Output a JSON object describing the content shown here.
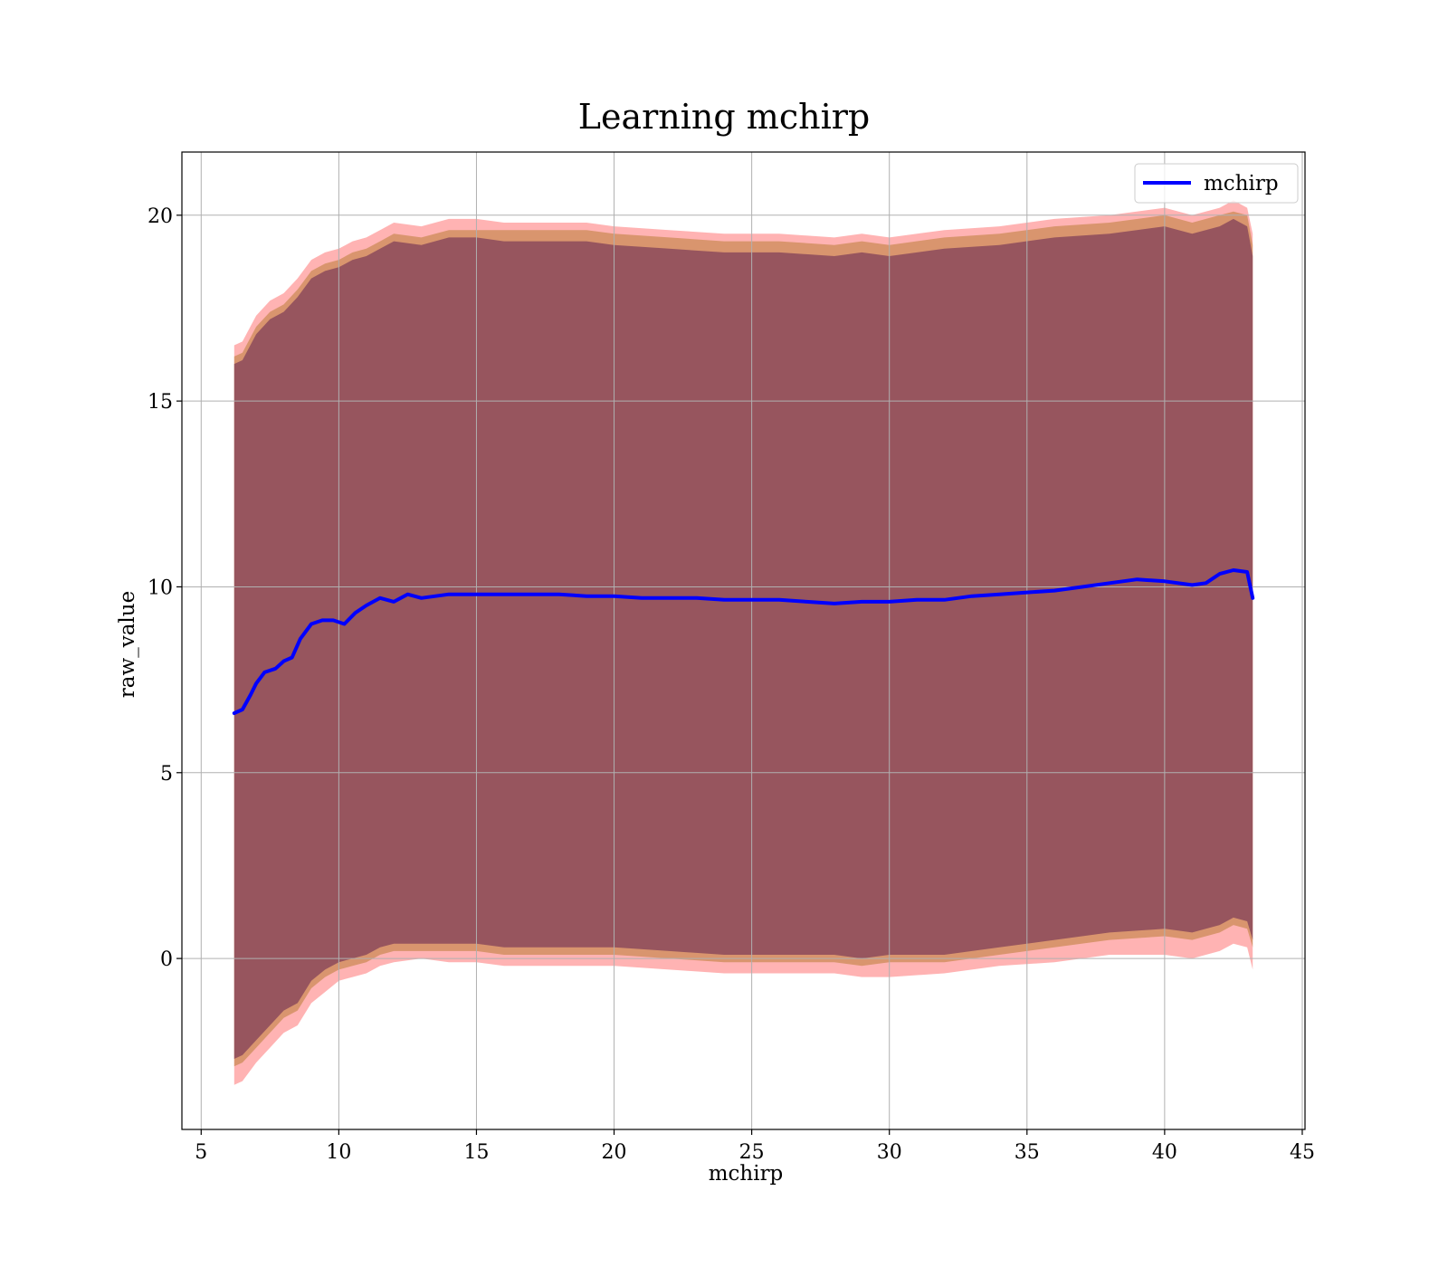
{
  "chart_data": {
    "type": "line",
    "title": "Learning mchirp",
    "xlabel": "mchirp",
    "ylabel": "raw_value",
    "xlim": [
      4.3,
      45.1
    ],
    "ylim": [
      -4.6,
      21.7
    ],
    "xticks": [
      5,
      10,
      15,
      20,
      25,
      30,
      35,
      40,
      45
    ],
    "yticks": [
      0,
      5,
      10,
      15,
      20
    ],
    "xtick_labels": [
      "5",
      "10",
      "15",
      "20",
      "25",
      "30",
      "35",
      "40",
      "45"
    ],
    "ytick_labels": [
      "0",
      "5",
      "10",
      "15",
      "20"
    ],
    "grid": true,
    "legend": {
      "position": "top-right",
      "entries": [
        "mchirp"
      ]
    },
    "series": [
      {
        "name": "mchirp",
        "kind": "line",
        "x": [
          6.2,
          6.5,
          6.8,
          7.0,
          7.3,
          7.7,
          8.0,
          8.3,
          8.6,
          9.0,
          9.4,
          9.8,
          10.2,
          10.6,
          11.0,
          11.5,
          12.0,
          12.5,
          13.0,
          14.0,
          15.0,
          16.0,
          17.0,
          18.0,
          19.0,
          20.0,
          21.0,
          22.0,
          23.0,
          24.0,
          25.0,
          26.0,
          27.0,
          28.0,
          29.0,
          30.0,
          31.0,
          32.0,
          33.0,
          34.0,
          35.0,
          36.0,
          37.0,
          38.0,
          39.0,
          40.0,
          41.0,
          41.5,
          42.0,
          42.5,
          43.0,
          43.2
        ],
        "y": [
          6.6,
          6.7,
          7.1,
          7.4,
          7.7,
          7.8,
          8.0,
          8.1,
          8.6,
          9.0,
          9.1,
          9.1,
          9.0,
          9.3,
          9.5,
          9.7,
          9.6,
          9.8,
          9.7,
          9.8,
          9.8,
          9.8,
          9.8,
          9.8,
          9.75,
          9.75,
          9.7,
          9.7,
          9.7,
          9.65,
          9.65,
          9.65,
          9.6,
          9.55,
          9.6,
          9.6,
          9.65,
          9.65,
          9.75,
          9.8,
          9.85,
          9.9,
          10.0,
          10.1,
          10.2,
          10.15,
          10.05,
          10.1,
          10.35,
          10.45,
          10.4,
          9.7
        ]
      },
      {
        "kind": "band",
        "color": "#ff8080",
        "x": [
          6.2,
          6.5,
          7.0,
          7.5,
          8.0,
          8.5,
          9.0,
          9.5,
          10.0,
          10.5,
          11.0,
          11.5,
          12.0,
          13.0,
          14.0,
          15.0,
          16.0,
          17.0,
          18.0,
          19.0,
          20.0,
          22.0,
          24.0,
          26.0,
          28.0,
          29.0,
          30.0,
          32.0,
          34.0,
          36.0,
          38.0,
          40.0,
          41.0,
          42.0,
          42.5,
          43.0,
          43.2
        ],
        "lower": [
          -3.4,
          -3.3,
          -2.8,
          -2.4,
          -2.0,
          -1.8,
          -1.2,
          -0.9,
          -0.6,
          -0.5,
          -0.4,
          -0.2,
          -0.1,
          0.0,
          -0.1,
          -0.1,
          -0.2,
          -0.2,
          -0.2,
          -0.2,
          -0.2,
          -0.3,
          -0.4,
          -0.4,
          -0.4,
          -0.5,
          -0.5,
          -0.4,
          -0.2,
          -0.1,
          0.1,
          0.1,
          0.0,
          0.2,
          0.4,
          0.3,
          -0.3
        ],
        "upper": [
          16.5,
          16.6,
          17.3,
          17.7,
          17.9,
          18.3,
          18.8,
          19.0,
          19.1,
          19.3,
          19.4,
          19.6,
          19.8,
          19.7,
          19.9,
          19.9,
          19.8,
          19.8,
          19.8,
          19.8,
          19.7,
          19.6,
          19.5,
          19.5,
          19.4,
          19.5,
          19.4,
          19.6,
          19.7,
          19.9,
          20.0,
          20.2,
          20.0,
          20.2,
          20.4,
          20.2,
          19.5
        ]
      },
      {
        "kind": "band",
        "color": "#c08040",
        "x": [
          6.2,
          6.5,
          7.0,
          7.5,
          8.0,
          8.5,
          9.0,
          9.5,
          10.0,
          10.5,
          11.0,
          11.5,
          12.0,
          13.0,
          14.0,
          15.0,
          16.0,
          17.0,
          18.0,
          19.0,
          20.0,
          22.0,
          24.0,
          26.0,
          28.0,
          29.0,
          30.0,
          32.0,
          34.0,
          36.0,
          38.0,
          40.0,
          41.0,
          42.0,
          42.5,
          43.0,
          43.2
        ],
        "lower": [
          -2.9,
          -2.8,
          -2.4,
          -2.0,
          -1.6,
          -1.4,
          -0.8,
          -0.5,
          -0.3,
          -0.2,
          -0.1,
          0.1,
          0.2,
          0.2,
          0.2,
          0.2,
          0.1,
          0.1,
          0.1,
          0.1,
          0.1,
          0.0,
          -0.1,
          -0.1,
          -0.1,
          -0.2,
          -0.1,
          -0.1,
          0.1,
          0.3,
          0.5,
          0.6,
          0.5,
          0.7,
          0.9,
          0.8,
          0.3
        ],
        "upper": [
          16.2,
          16.3,
          17.0,
          17.4,
          17.6,
          18.0,
          18.5,
          18.7,
          18.8,
          19.0,
          19.1,
          19.3,
          19.5,
          19.4,
          19.6,
          19.6,
          19.6,
          19.6,
          19.6,
          19.6,
          19.5,
          19.4,
          19.3,
          19.3,
          19.2,
          19.3,
          19.2,
          19.4,
          19.5,
          19.7,
          19.8,
          20.0,
          19.8,
          20.0,
          20.1,
          20.0,
          19.2
        ]
      },
      {
        "kind": "band",
        "color": "#8b4a5c",
        "x": [
          6.2,
          6.5,
          7.0,
          7.5,
          8.0,
          8.5,
          9.0,
          9.5,
          10.0,
          10.5,
          11.0,
          11.5,
          12.0,
          13.0,
          14.0,
          15.0,
          16.0,
          17.0,
          18.0,
          19.0,
          20.0,
          22.0,
          24.0,
          26.0,
          28.0,
          29.0,
          30.0,
          32.0,
          34.0,
          36.0,
          38.0,
          40.0,
          41.0,
          42.0,
          42.5,
          43.0,
          43.2
        ],
        "lower": [
          -2.7,
          -2.6,
          -2.2,
          -1.8,
          -1.4,
          -1.2,
          -0.6,
          -0.3,
          -0.1,
          0.0,
          0.1,
          0.3,
          0.4,
          0.4,
          0.4,
          0.4,
          0.3,
          0.3,
          0.3,
          0.3,
          0.3,
          0.2,
          0.1,
          0.1,
          0.1,
          0.0,
          0.1,
          0.1,
          0.3,
          0.5,
          0.7,
          0.8,
          0.7,
          0.9,
          1.1,
          1.0,
          0.5
        ],
        "upper": [
          16.0,
          16.1,
          16.8,
          17.2,
          17.4,
          17.8,
          18.3,
          18.5,
          18.6,
          18.8,
          18.9,
          19.1,
          19.3,
          19.2,
          19.4,
          19.4,
          19.3,
          19.3,
          19.3,
          19.3,
          19.2,
          19.1,
          19.0,
          19.0,
          18.9,
          19.0,
          18.9,
          19.1,
          19.2,
          19.4,
          19.5,
          19.7,
          19.5,
          19.7,
          19.9,
          19.7,
          18.9
        ]
      }
    ]
  }
}
